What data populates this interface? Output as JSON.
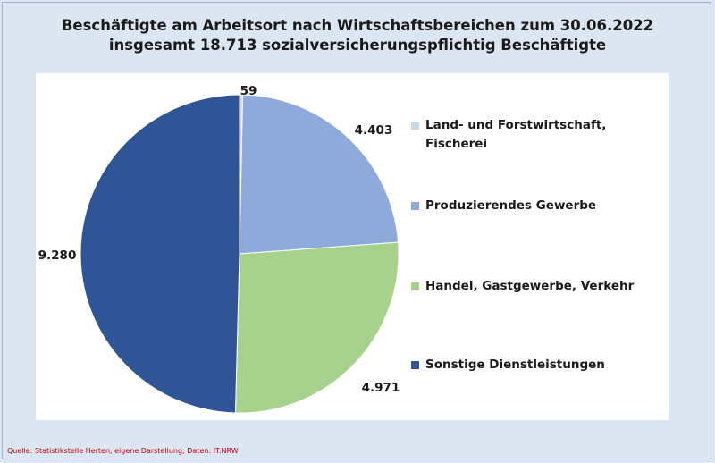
{
  "title_line1": "Beschäftigte am Arbeitsort nach Wirtschaftsbereichen zum 30.06.2022",
  "title_line2": "insgesamt 18.713 sozialversicherungspflichtig Beschäftigte",
  "source": "Quelle: Statistikstelle Herten, eigene Darstellung; Daten: IT.NRW",
  "chart_data": {
    "type": "pie",
    "title": "Beschäftigte am Arbeitsort nach Wirtschaftsbereichen zum 30.06.2022",
    "subtitle": "insgesamt 18.713 sozialversicherungspflichtig Beschäftigte",
    "categories": [
      "Land- und Forstwirtschaft, Fischerei",
      "Produzierendes Gewerbe",
      "Handel, Gastgewerbe, Verkehr",
      "Sonstige Dienstleistungen"
    ],
    "values": [
      59,
      4403,
      4971,
      9280
    ],
    "value_labels": [
      "59",
      "4.403",
      "4.971",
      "9.280"
    ],
    "colors": [
      "#c6d9f1",
      "#8eaadb",
      "#a9d18e",
      "#2f5597"
    ],
    "legend_position": "right"
  }
}
